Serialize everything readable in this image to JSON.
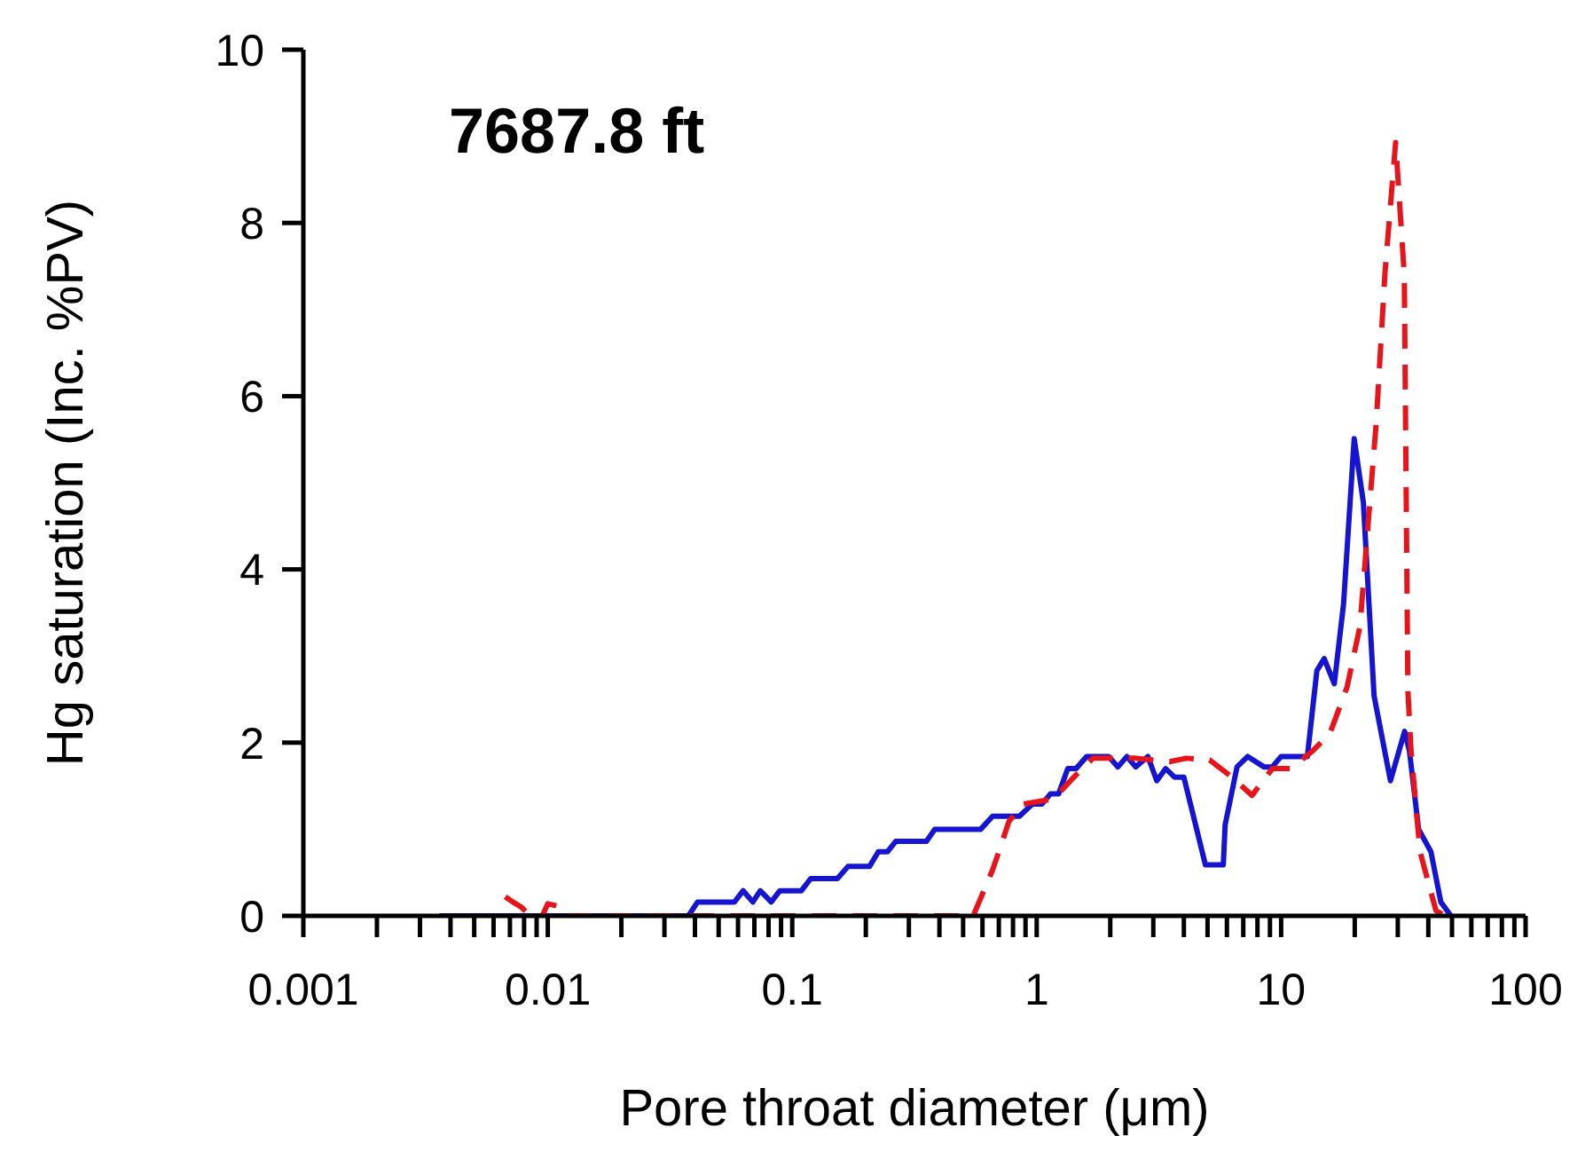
{
  "chart_data": {
    "type": "line",
    "title": "7687.8 ft",
    "xlabel": "Pore throat diameter (μm)",
    "ylabel": "Hg saturation (Inc. %PV)",
    "log": "x",
    "marker": "none",
    "xlim": [
      0.001,
      100
    ],
    "ylim": [
      0,
      10
    ],
    "xticks": [
      0.001,
      {
        "value": 0.002,
        "label": null
      },
      {
        "value": 0.003,
        "label": null
      },
      {
        "value": 0.004,
        "label": null
      },
      {
        "value": 0.005,
        "label": null
      },
      {
        "value": 0.006,
        "label": null
      },
      {
        "value": 0.007,
        "label": null
      },
      {
        "value": 0.008,
        "label": null
      },
      {
        "value": 0.009,
        "label": null
      },
      0.01,
      {
        "value": 0.02,
        "label": null
      },
      {
        "value": 0.03,
        "label": null
      },
      {
        "value": 0.04,
        "label": null
      },
      {
        "value": 0.05,
        "label": null
      },
      {
        "value": 0.06,
        "label": null
      },
      {
        "value": 0.07,
        "label": null
      },
      {
        "value": 0.08,
        "label": null
      },
      {
        "value": 0.09,
        "label": null
      },
      0.1,
      {
        "value": 0.2,
        "label": null
      },
      {
        "value": 0.3,
        "label": null
      },
      {
        "value": 0.4,
        "label": null
      },
      {
        "value": 0.5,
        "label": null
      },
      {
        "value": 0.6,
        "label": null
      },
      {
        "value": 0.7,
        "label": null
      },
      {
        "value": 0.8,
        "label": null
      },
      {
        "value": 0.9,
        "label": null
      },
      1,
      {
        "value": 2,
        "label": null
      },
      {
        "value": 3,
        "label": null
      },
      {
        "value": 4,
        "label": null
      },
      {
        "value": 5,
        "label": null
      },
      {
        "value": 6,
        "label": null
      },
      {
        "value": 7,
        "label": null
      },
      {
        "value": 8,
        "label": null
      },
      {
        "value": 9,
        "label": null
      },
      10,
      {
        "value": 20,
        "label": null
      },
      {
        "value": 30,
        "label": null
      },
      {
        "value": 40,
        "label": null
      },
      {
        "value": 50,
        "label": null
      },
      {
        "value": 60,
        "label": null
      },
      {
        "value": 70,
        "label": null
      },
      {
        "value": 80,
        "label": null
      },
      {
        "value": 90,
        "label": null
      },
      100
    ],
    "yticks": [
      0,
      2,
      4,
      6,
      8,
      10
    ],
    "series": [
      {
        "color": "#1414d2",
        "line_style": "solid",
        "x": [
          0.0036,
          0.0376,
          0.041,
          0.058,
          0.063,
          0.069,
          0.074,
          0.082,
          0.089,
          0.109,
          0.119,
          0.153,
          0.169,
          0.207,
          0.225,
          0.245,
          0.265,
          0.354,
          0.383,
          0.59,
          0.66,
          0.85,
          0.96,
          1.05,
          1.14,
          1.23,
          1.34,
          1.45,
          1.6,
          1.97,
          2.15,
          2.34,
          2.54,
          2.85,
          3.1,
          3.37,
          3.67,
          4.0,
          4.9,
          5.8,
          5.9,
          6.6,
          7.3,
          8.5,
          9.2,
          10.0,
          12.8,
          14.0,
          15.0,
          16.5,
          18.0,
          19.9,
          21.7,
          24.0,
          28.0,
          32.0,
          33.5,
          36.5,
          41.0,
          45.0,
          49.5
        ],
        "values": [
          0,
          0,
          0.16,
          0.16,
          0.29,
          0.16,
          0.29,
          0.16,
          0.29,
          0.29,
          0.43,
          0.43,
          0.57,
          0.57,
          0.74,
          0.74,
          0.86,
          0.86,
          1.0,
          1.0,
          1.15,
          1.15,
          1.29,
          1.29,
          1.41,
          1.41,
          1.7,
          1.7,
          1.84,
          1.84,
          1.72,
          1.84,
          1.72,
          1.84,
          1.56,
          1.7,
          1.6,
          1.6,
          0.59,
          0.59,
          1.05,
          1.72,
          1.84,
          1.72,
          1.72,
          1.84,
          1.84,
          2.83,
          2.97,
          2.68,
          3.6,
          5.51,
          4.77,
          2.54,
          1.56,
          2.13,
          1.9,
          1.0,
          0.74,
          0.16,
          0
        ]
      },
      {
        "color": "#e8141c",
        "line_style": "dashed",
        "x": [
          0.0067,
          0.0072,
          0.0078,
          0.0085,
          0.0095,
          0.01,
          0.0115,
          0.012,
          0.04,
          0.55,
          0.66,
          0.7,
          0.77,
          0.88,
          1.17,
          1.44,
          1.7,
          2.54,
          3.5,
          4.1,
          5.1,
          6.3,
          7.6,
          9.2,
          11.0,
          13.4,
          15.8,
          18.6,
          21.0,
          24.5,
          26.6,
          29.4,
          31.9,
          33.0,
          34.0,
          37.0,
          43.0,
          47.0
        ],
        "values": [
          0.22,
          0.16,
          0.1,
          0,
          0,
          0.14,
          0.1,
          0,
          0,
          0,
          0.53,
          0.74,
          1.09,
          1.29,
          1.35,
          1.62,
          1.82,
          1.82,
          1.78,
          1.82,
          1.8,
          1.6,
          1.39,
          1.7,
          1.7,
          1.9,
          2.1,
          2.64,
          3.34,
          5.7,
          7.43,
          8.93,
          7.4,
          2.6,
          1.9,
          0.74,
          0.06,
          0
        ]
      }
    ]
  }
}
